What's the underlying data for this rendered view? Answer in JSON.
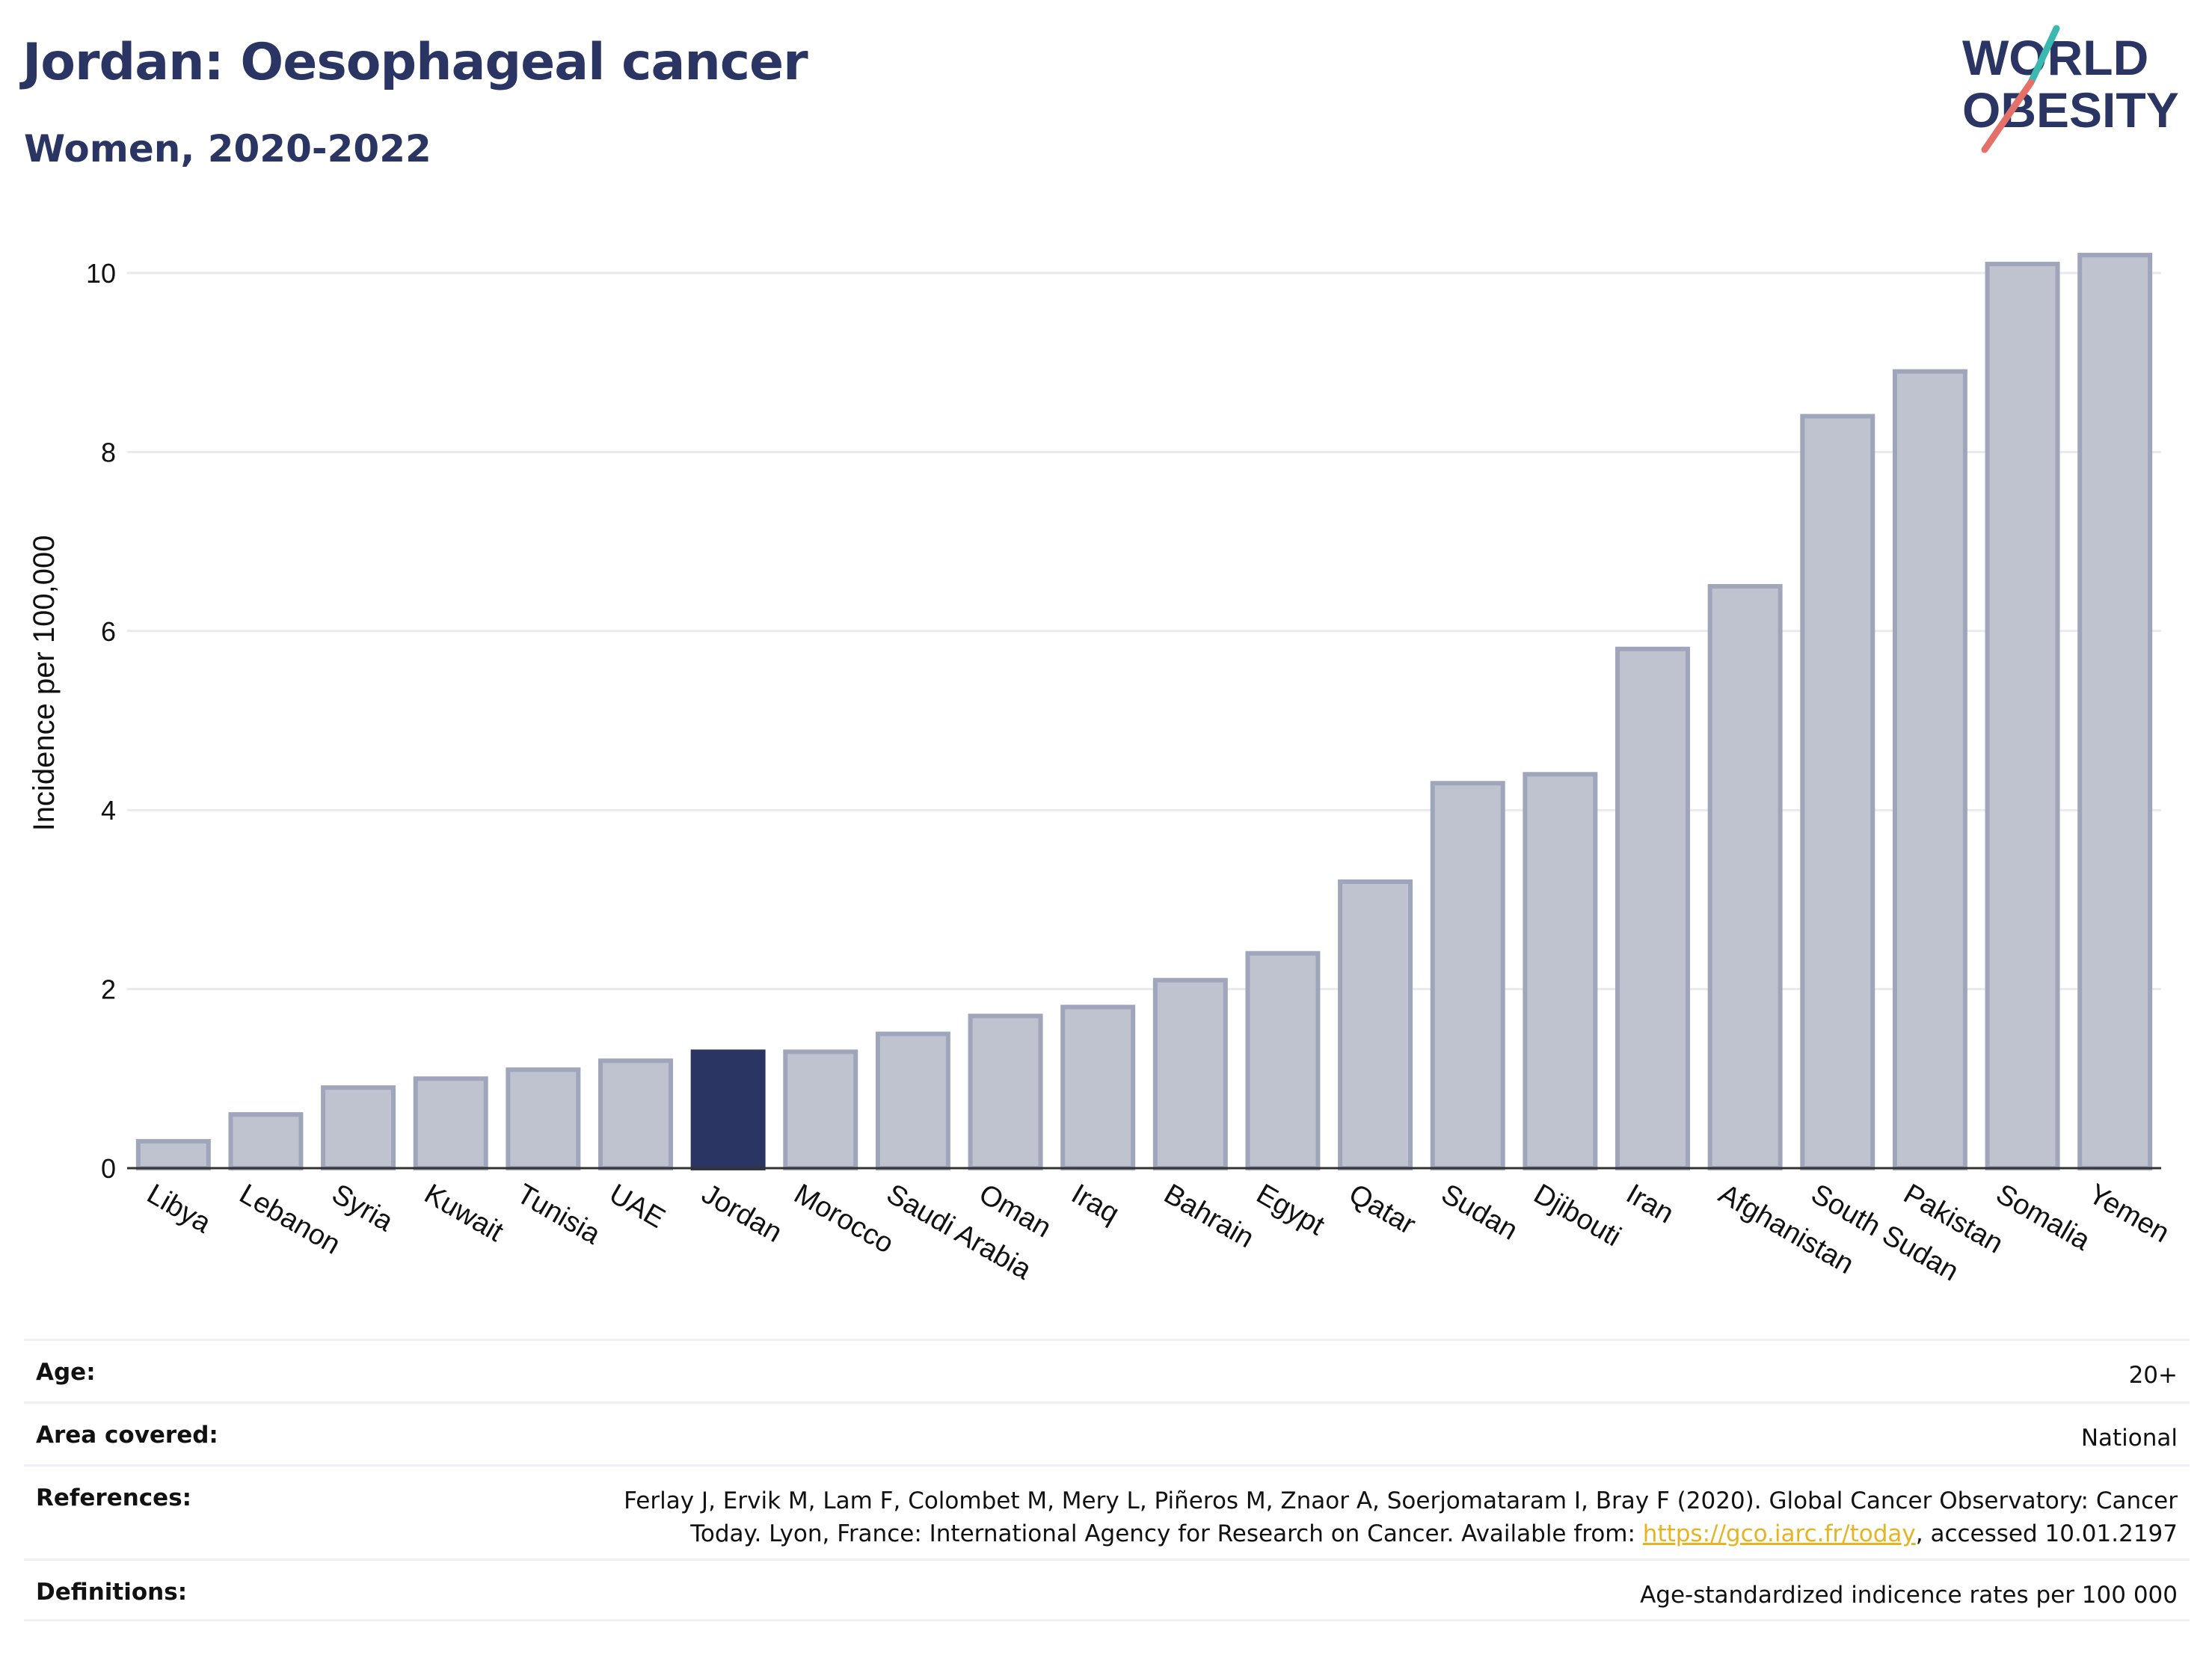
{
  "header": {
    "title": "Jordan: Oesophageal cancer",
    "subtitle": "Women, 2020-2022"
  },
  "logo": {
    "line1": "WORLD",
    "line2": "OBESITY"
  },
  "colors": {
    "highlight": "#2a3563",
    "bar_fill": "#bfc3cf",
    "bar_stroke": "#9fa5ba",
    "accent_teal": "#3bb8b0",
    "accent_red": "#e5706a",
    "link": "#e6b422"
  },
  "chart_data": {
    "type": "bar",
    "title": "Jordan: Oesophageal cancer",
    "subtitle": "Women, 2020-2022",
    "xlabel": "",
    "ylabel": "Incidence per 100,000",
    "ylim": [
      0,
      10.5
    ],
    "yticks": [
      0,
      2,
      4,
      6,
      8,
      10
    ],
    "grid": true,
    "highlight": "Jordan",
    "categories": [
      "Libya",
      "Lebanon",
      "Syria",
      "Kuwait",
      "Tunisia",
      "UAE",
      "Jordan",
      "Morocco",
      "Saudi Arabia",
      "Oman",
      "Iraq",
      "Bahrain",
      "Egypt",
      "Qatar",
      "Sudan",
      "Djibouti",
      "Iran",
      "Afghanistan",
      "South Sudan",
      "Pakistan",
      "Somalia",
      "Yemen"
    ],
    "values": [
      0.3,
      0.6,
      0.9,
      1.0,
      1.1,
      1.2,
      1.3,
      1.3,
      1.5,
      1.7,
      1.8,
      2.1,
      2.4,
      3.2,
      4.3,
      4.4,
      5.8,
      6.5,
      8.4,
      8.9,
      10.1,
      10.2
    ]
  },
  "info": {
    "age_label": "Age:",
    "age_value": "20+",
    "area_label": "Area covered:",
    "area_value": "National",
    "ref_label": "References:",
    "ref_text_1": "Ferlay J, Ervik M, Lam F, Colombet M, Mery L, Piñeros M, Znaor A, Soerjomataram I, Bray F (2020). Global Cancer Observatory: Cancer",
    "ref_text_2": "Today. Lyon, France: International Agency for Research on Cancer. Available from: ",
    "ref_link": "https://gco.iarc.fr/today",
    "ref_text_3": ", accessed 10.01.2197",
    "def_label": "Definitions:",
    "def_value": "Age-standardized indicence rates per 100 000"
  }
}
